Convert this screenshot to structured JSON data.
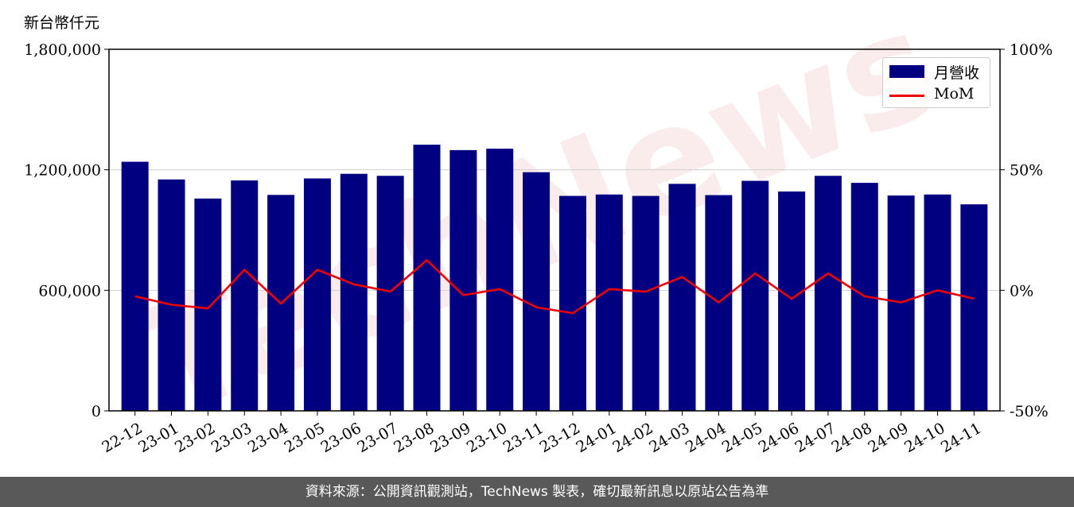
{
  "chart_data": {
    "type": "bar",
    "y_unit_label": "新台幣仟元",
    "categories": [
      "22-12",
      "23-01",
      "23-02",
      "23-03",
      "23-04",
      "23-05",
      "23-06",
      "23-07",
      "23-08",
      "23-09",
      "23-10",
      "23-11",
      "23-12",
      "24-01",
      "24-02",
      "24-03",
      "24-04",
      "24-05",
      "24-06",
      "24-07",
      "24-08",
      "24-09",
      "24-10",
      "24-11"
    ],
    "series": [
      {
        "name": "月營收",
        "axis": "left",
        "chart": "bar",
        "color": "#000080",
        "values": [
          1240000,
          1152000,
          1057000,
          1147000,
          1075000,
          1157000,
          1180000,
          1170000,
          1325000,
          1298000,
          1305000,
          1188000,
          1070000,
          1077000,
          1070000,
          1130000,
          1074000,
          1145000,
          1092000,
          1170000,
          1135000,
          1072000,
          1077000,
          1028000
        ]
      },
      {
        "name": "MoM",
        "axis": "right",
        "chart": "line",
        "color": "#ee0000",
        "unit": "%",
        "values": [
          -2.5,
          -6,
          -7.5,
          8.5,
          -5.5,
          8.5,
          2.5,
          -0.5,
          12.5,
          -2,
          0.5,
          -7,
          -9.5,
          0.5,
          -0.5,
          5.5,
          -5,
          7,
          -3.5,
          7,
          -2.5,
          -5,
          0,
          -3.5
        ]
      }
    ],
    "y_left": {
      "ylim": [
        0,
        1800000
      ],
      "ticks": [
        "0",
        "600,000",
        "1,200,000",
        "1,800,000"
      ],
      "tick_values": [
        0,
        600000,
        1200000,
        1800000
      ]
    },
    "y_right": {
      "ylim": [
        -50,
        100
      ],
      "ticks": [
        "-50%",
        "0%",
        "50%",
        "100%"
      ],
      "tick_values": [
        -50,
        0,
        50,
        100
      ]
    },
    "grid": "horizontal",
    "legend": "top-right",
    "watermark": "TechNews"
  },
  "footer_text": "資料來源：公開資訊觀測站，TechNews 製表，確切最新訊息以原站公告為準"
}
